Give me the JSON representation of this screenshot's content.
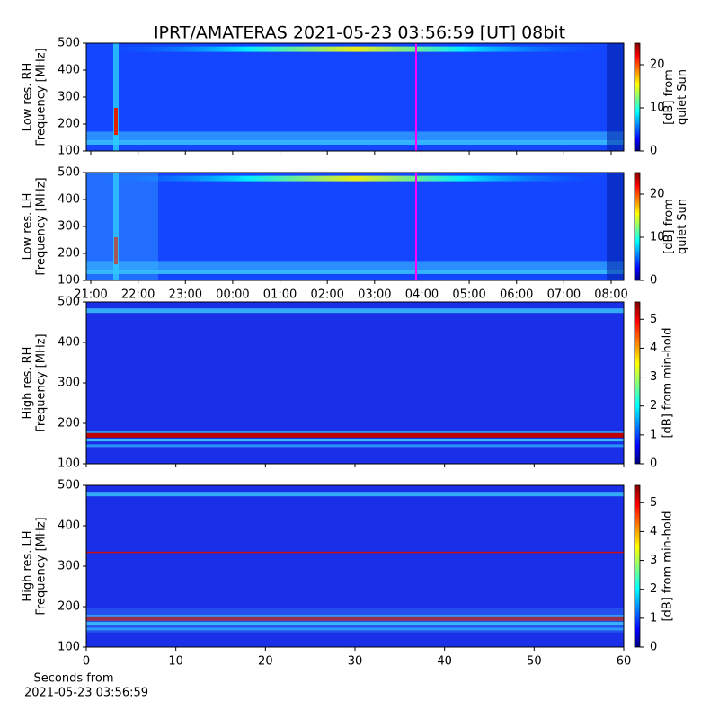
{
  "title": "IPRT/AMATERAS 2021-05-23 03:56:59 [UT]   08bit",
  "chart_data": [
    {
      "type": "spectrogram",
      "ylabel": [
        "Low res. RH",
        "Frequency [MHz]"
      ],
      "ylim": [
        100,
        500
      ],
      "yticks": [
        100,
        200,
        300,
        400,
        500
      ],
      "clabel": [
        "[dB] from",
        "quiet Sun"
      ],
      "clim": [
        0,
        25
      ],
      "cticks": [
        0,
        10,
        20
      ],
      "time_ticks": 12
    },
    {
      "type": "spectrogram",
      "ylabel": [
        "Low res. LH",
        "Frequency [MHz]"
      ],
      "ylim": [
        100,
        500
      ],
      "yticks": [
        100,
        200,
        300,
        400,
        500
      ],
      "clabel": [
        "[dB] from",
        "quiet Sun"
      ],
      "clim": [
        0,
        25
      ],
      "cticks": [
        0,
        10,
        20
      ],
      "xtick_labels": [
        "21:00",
        "22:00",
        "23:00",
        "00:00",
        "01:00",
        "02:00",
        "03:00",
        "04:00",
        "05:00",
        "06:00",
        "07:00",
        "08:00"
      ]
    },
    {
      "type": "spectrogram",
      "ylabel": [
        "High res. RH",
        "Frequency [MHz]"
      ],
      "ylim": [
        100,
        500
      ],
      "yticks": [
        100,
        200,
        300,
        400,
        500
      ],
      "clabel": [
        "[dB] from min-hold"
      ],
      "clim": [
        0,
        5.6
      ],
      "cticks": [
        0,
        1,
        2,
        3,
        4,
        5
      ],
      "xlim": [
        0,
        60
      ],
      "xticks": [
        0,
        10,
        20,
        30,
        40,
        50,
        60
      ]
    },
    {
      "type": "spectrogram",
      "ylabel": [
        "High res. LH",
        "Frequency [MHz]"
      ],
      "ylim": [
        100,
        500
      ],
      "yticks": [
        100,
        200,
        300,
        400,
        500
      ],
      "clabel": [
        "[dB] from min-hold"
      ],
      "clim": [
        0,
        5.6
      ],
      "cticks": [
        0,
        1,
        2,
        3,
        4,
        5
      ],
      "xlim": [
        0,
        60
      ],
      "xticks": [
        0,
        10,
        20,
        30,
        40,
        50,
        60
      ],
      "xlabel": [
        "Seconds from",
        "2021-05-23 03:56:59"
      ]
    }
  ]
}
